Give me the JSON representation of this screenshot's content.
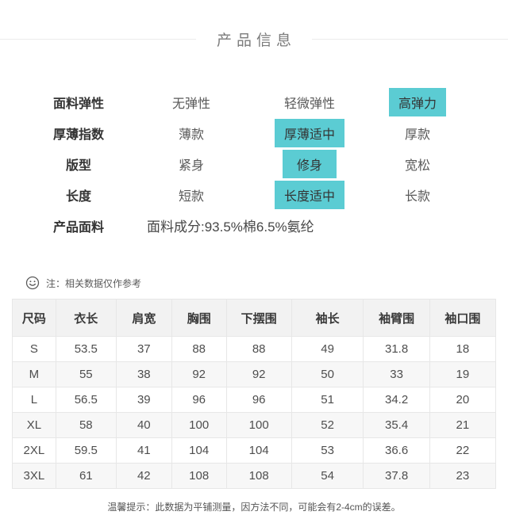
{
  "page": {
    "title": "产品信息"
  },
  "attributes": {
    "rows": [
      {
        "label": "面料弹性",
        "options": [
          {
            "text": "无弹性",
            "selected": false
          },
          {
            "text": "轻微弹性",
            "selected": false
          },
          {
            "text": "高弹力",
            "selected": true
          }
        ]
      },
      {
        "label": "厚薄指数",
        "options": [
          {
            "text": "薄款",
            "selected": false
          },
          {
            "text": "厚薄适中",
            "selected": true
          },
          {
            "text": "厚款",
            "selected": false
          }
        ]
      },
      {
        "label": "版型",
        "options": [
          {
            "text": "紧身",
            "selected": false
          },
          {
            "text": "修身",
            "selected": true
          },
          {
            "text": "宽松",
            "selected": false
          }
        ]
      },
      {
        "label": "长度",
        "options": [
          {
            "text": "短款",
            "selected": false
          },
          {
            "text": "长度适中",
            "selected": true
          },
          {
            "text": "长款",
            "selected": false
          }
        ]
      }
    ],
    "fabric": {
      "label": "产品面料",
      "value": "面料成分:93.5%棉6.5%氨纶"
    }
  },
  "note": {
    "icon": "smiley-icon",
    "text": "注：相关数据仅作参考"
  },
  "size_table": {
    "headers": [
      "尺码",
      "衣长",
      "肩宽",
      "胸围",
      "下摆围",
      "袖长",
      "袖臂围",
      "袖口围"
    ],
    "rows": [
      [
        "S",
        "53.5",
        "37",
        "88",
        "88",
        "49",
        "31.8",
        "18"
      ],
      [
        "M",
        "55",
        "38",
        "92",
        "92",
        "50",
        "33",
        "19"
      ],
      [
        "L",
        "56.5",
        "39",
        "96",
        "96",
        "51",
        "34.2",
        "20"
      ],
      [
        "XL",
        "58",
        "40",
        "100",
        "100",
        "52",
        "35.4",
        "21"
      ],
      [
        "2XL",
        "59.5",
        "41",
        "104",
        "104",
        "53",
        "36.6",
        "22"
      ],
      [
        "3XL",
        "61",
        "42",
        "108",
        "108",
        "54",
        "37.8",
        "23"
      ]
    ]
  },
  "footer": {
    "text": "温馨提示：此数据为平铺测量，因方法不同，可能会有2-4cm的误差。"
  },
  "colors": {
    "highlight": "#5bccd3",
    "header_bg": "#f2f2f2",
    "stripe_bg": "#f7f7f7",
    "border": "#e7e7e7"
  }
}
